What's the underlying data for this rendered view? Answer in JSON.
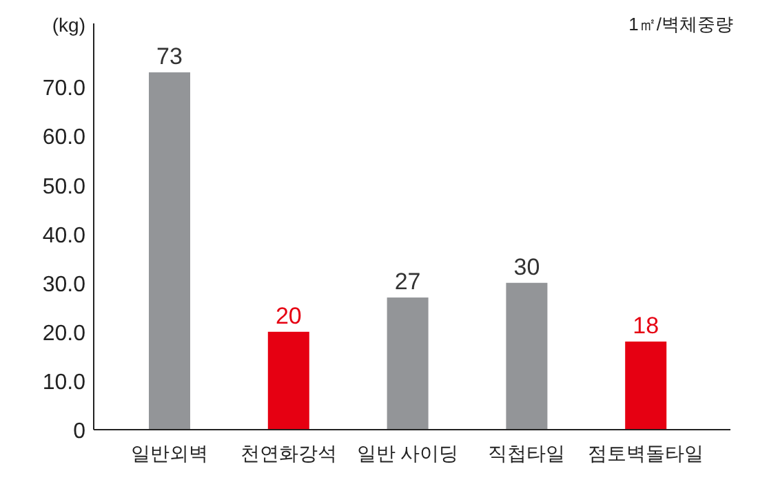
{
  "chart_data": {
    "type": "bar",
    "ylabel": "(kg)",
    "annotations": [
      "1㎡/벽체중량"
    ],
    "categories": [
      "일반외벽",
      "천연화강석",
      "일반 사이딩",
      "직첩타일",
      "점토벽돌타일"
    ],
    "values": [
      73,
      20,
      27,
      30,
      18
    ],
    "colors": [
      "#939598",
      "#e60012",
      "#939598",
      "#939598",
      "#e60012"
    ],
    "ylim": [
      0,
      83
    ],
    "yticks": [
      0,
      {
        "value": 10,
        "label": "10.0"
      },
      {
        "value": 20,
        "label": "20.0"
      },
      {
        "value": 30,
        "label": "30.0"
      },
      {
        "value": 40,
        "label": "40.0"
      },
      {
        "value": 50,
        "label": "50.0"
      },
      {
        "value": 60,
        "label": "60.0"
      },
      {
        "value": 70,
        "label": "70.0"
      }
    ],
    "data_labels": true,
    "grid": false
  }
}
